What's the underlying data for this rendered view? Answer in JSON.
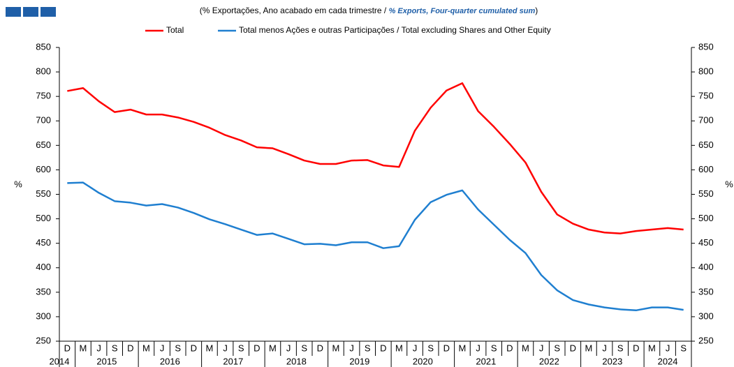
{
  "chart_data": {
    "type": "line",
    "subtitle": [
      "(% Exportações, Ano acabado em cada trimestre /",
      "% Exports, Four-quarter cumulated sum",
      ")"
    ],
    "ylabel": "%",
    "y2label": "%",
    "categories": [
      "D",
      "M",
      "J",
      "S",
      "D",
      "M",
      "J",
      "S",
      "D",
      "M",
      "J",
      "S",
      "D",
      "M",
      "J",
      "S",
      "D",
      "M",
      "J",
      "S",
      "D",
      "M",
      "J",
      "S",
      "D",
      "M",
      "J",
      "S",
      "D",
      "M",
      "J",
      "S",
      "D",
      "M",
      "J",
      "S",
      "D",
      "M",
      "J",
      "S"
    ],
    "years": [
      "2014",
      "2015",
      "2016",
      "2017",
      "2018",
      "2019",
      "2020",
      "2021",
      "2022",
      "2023",
      "2024"
    ],
    "series": [
      {
        "name": "Total",
        "color": "#ff0000",
        "values": [
          761,
          767,
          740,
          718,
          723,
          713,
          713,
          707,
          698,
          686,
          671,
          660,
          646,
          644,
          632,
          619,
          612,
          612,
          619,
          620,
          609,
          606,
          680,
          727,
          762,
          777,
          720,
          688,
          653,
          615,
          555,
          509,
          490,
          478,
          472,
          470,
          475,
          478,
          481,
          478
        ]
      },
      {
        "name": "Total menos Ações e outras Participações / Total excluding Shares and Other Equity",
        "color": "#1f7fd0",
        "values": [
          573,
          574,
          553,
          536,
          533,
          527,
          530,
          523,
          512,
          499,
          489,
          478,
          467,
          470,
          459,
          448,
          449,
          446,
          452,
          452,
          440,
          444,
          498,
          534,
          549,
          558,
          519,
          488,
          457,
          430,
          385,
          354,
          334,
          325,
          319,
          315,
          313,
          319,
          319,
          314
        ]
      }
    ],
    "ylim": [
      250,
      850
    ],
    "yticks": [
      250,
      300,
      350,
      400,
      450,
      500,
      550,
      600,
      650,
      700,
      750,
      800,
      850
    ],
    "y2lim": [
      250,
      850
    ],
    "y2ticks": [
      250,
      300,
      350,
      400,
      450,
      500,
      550,
      600,
      650,
      700,
      750,
      800,
      850
    ]
  }
}
